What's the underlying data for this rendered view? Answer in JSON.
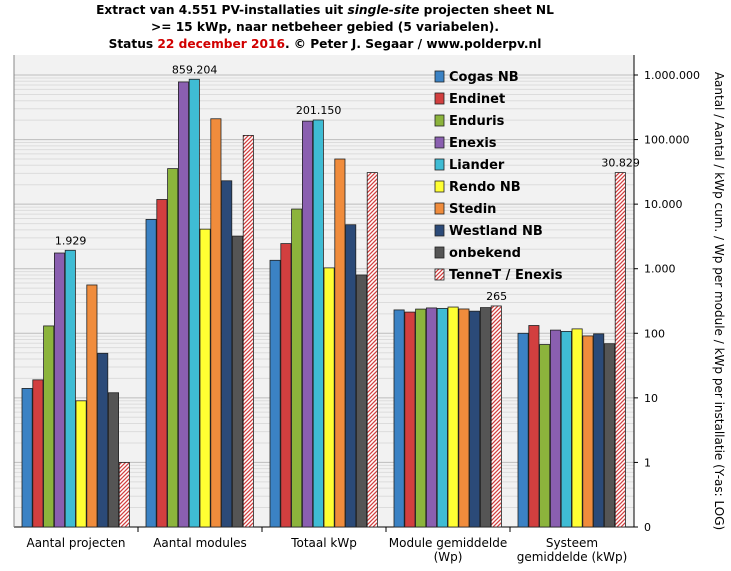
{
  "title": {
    "line1_a": "Extract van 4.551 PV-installaties uit ",
    "line1_b": "single-site",
    "line1_c": " projecten sheet NL",
    "line2": ">= 15 kWp, naar netbeheer gebied (5 variabelen).",
    "line3_a": "Status ",
    "line3_b": "22 december 2016",
    "line3_c": ". © Peter J. Segaar / www.polderpv.nl"
  },
  "colors": {
    "highlight": "#d10000",
    "plot_bg": "#f2f2f2",
    "grid": "#c8c8c8"
  },
  "chart_data": {
    "type": "bar",
    "scale": "log",
    "ylim": [
      0.1,
      1000000
    ],
    "grid": true,
    "legend_position": "top-right",
    "ylabel": "Aantal / Aantal / kWp cum. / Wp per module / kWp per installatie (Y-as: LOG)",
    "y_ticks": [
      {
        "value": 0.1,
        "label": "0"
      },
      {
        "value": 1,
        "label": "1"
      },
      {
        "value": 10,
        "label": "10"
      },
      {
        "value": 100,
        "label": "100"
      },
      {
        "value": 1000,
        "label": "1.000"
      },
      {
        "value": 10000,
        "label": "10.000"
      },
      {
        "value": 100000,
        "label": "100.000"
      },
      {
        "value": 1000000,
        "label": "1.000.000"
      }
    ],
    "categories": [
      "Aantal projecten",
      "Aantal modules",
      "Totaal kWp",
      "Module gemiddelde (Wp)",
      "Systeem gemiddelde (kWp)"
    ],
    "category_lines": [
      [
        "Aantal projecten"
      ],
      [
        "Aantal modules"
      ],
      [
        "Totaal kWp"
      ],
      [
        "Module gemiddelde",
        "(Wp)"
      ],
      [
        "Systeem",
        "gemiddelde (kWp)"
      ]
    ],
    "series": [
      {
        "name": "Cogas NB",
        "color": "#3b82c4",
        "values": [
          14,
          5800,
          1350,
          230,
          100
        ]
      },
      {
        "name": "Endinet",
        "color": "#d23f3f",
        "values": [
          19,
          11800,
          2450,
          213,
          132
        ]
      },
      {
        "name": "Enduris",
        "color": "#8cb43c",
        "values": [
          130,
          35500,
          8400,
          237,
          67
        ]
      },
      {
        "name": "Enexis",
        "color": "#8a5fb0",
        "values": [
          1750,
          780000,
          193000,
          247,
          112
        ]
      },
      {
        "name": "Liander",
        "color": "#3fbcd4",
        "values": [
          1929,
          859204,
          201150,
          243,
          107
        ]
      },
      {
        "name": "Rendo NB",
        "color": "#ffff33",
        "values": [
          9,
          4100,
          1030,
          255,
          117
        ]
      },
      {
        "name": "Stedin",
        "color": "#f08c3c",
        "values": [
          560,
          210000,
          50000,
          238,
          91
        ]
      },
      {
        "name": "Westland NB",
        "color": "#2b4a78",
        "values": [
          49,
          23000,
          4800,
          220,
          98
        ]
      },
      {
        "name": "onbekend",
        "color": "#555555",
        "values": [
          12,
          3200,
          800,
          250,
          69
        ]
      },
      {
        "name": "TenneT / Enexis",
        "color": "#d23f3f",
        "pattern": "hatch",
        "values": [
          1,
          116000,
          30829,
          265,
          30829
        ]
      }
    ],
    "data_labels": [
      {
        "category": 0,
        "series": 4,
        "text": "1.929"
      },
      {
        "category": 1,
        "series": 4,
        "text": "859.204"
      },
      {
        "category": 2,
        "series": 4,
        "text": "201.150"
      },
      {
        "category": 3,
        "series": 9,
        "text": "265"
      },
      {
        "category": 4,
        "series": 9,
        "text": "30.829"
      }
    ]
  }
}
